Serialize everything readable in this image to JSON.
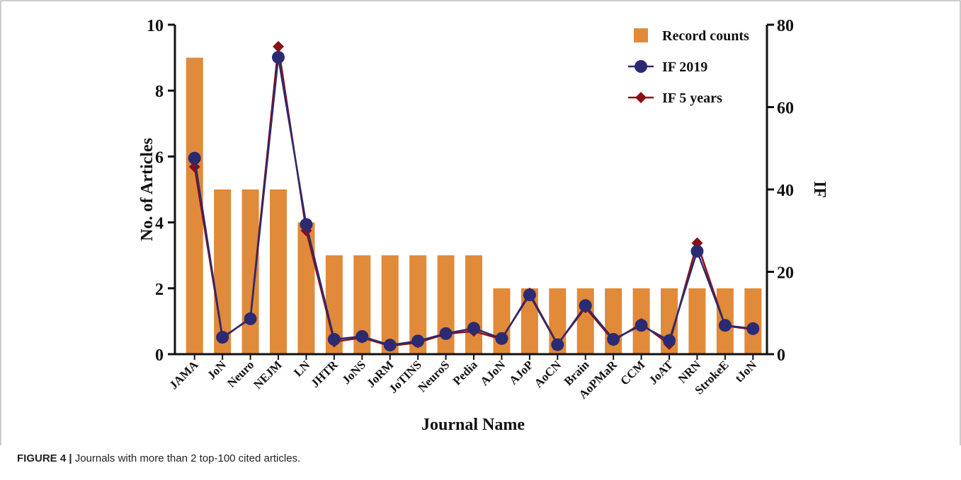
{
  "chart_data": {
    "type": "bar_line",
    "xlabel": "Journal Name",
    "ylabel": "No. of Articles",
    "y2label": "IF",
    "caption_label": "FIGURE 4 |",
    "caption": "Journals with more than 2 top-100 cited articles.",
    "categories": [
      "JAMA",
      "JoN",
      "Neuro",
      "NEJM",
      "LN",
      "JHTR",
      "JoNS",
      "JoRM",
      "JoTINS",
      "NeuroS",
      "Pedia",
      "AJoN",
      "AJoP",
      "AoCN",
      "Brain",
      "AoPMaR",
      "CCM",
      "JoAT",
      "NRN",
      "StrokeE",
      "tJoN"
    ],
    "ylim": [
      0,
      10
    ],
    "yticks": [
      0,
      2,
      4,
      6,
      8,
      10
    ],
    "y2lim": [
      0,
      80
    ],
    "y2ticks": [
      0,
      20,
      40,
      60,
      80
    ],
    "series": [
      {
        "name": "Record counts",
        "color": "#e08a3a",
        "kind": "bar",
        "values": [
          9,
          5,
          5,
          5,
          4,
          3,
          3,
          3,
          3,
          3,
          3,
          2,
          2,
          2,
          2,
          2,
          2,
          2,
          2,
          2,
          2
        ]
      },
      {
        "name": "IF 2019",
        "color": "#2b2a72",
        "kind": "line",
        "marker": "circle",
        "axis": "y2",
        "values": [
          47.6,
          4.1,
          8.6,
          72.1,
          31.5,
          3.6,
          4.3,
          2.2,
          3.2,
          5.0,
          6.3,
          3.8,
          14.4,
          2.3,
          11.8,
          3.6,
          7.0,
          3.3,
          25.0,
          7.0,
          6.2
        ]
      },
      {
        "name": "IF 5 years",
        "color": "#8b0f16",
        "kind": "line",
        "marker": "diamond",
        "axis": "y2",
        "values": [
          45.5,
          3.9,
          8.8,
          74.7,
          30.0,
          3.0,
          4.0,
          2.0,
          2.8,
          4.9,
          5.6,
          3.6,
          14.8,
          2.4,
          11.3,
          3.3,
          7.4,
          2.4,
          27.0,
          6.9,
          6.0
        ]
      }
    ]
  }
}
